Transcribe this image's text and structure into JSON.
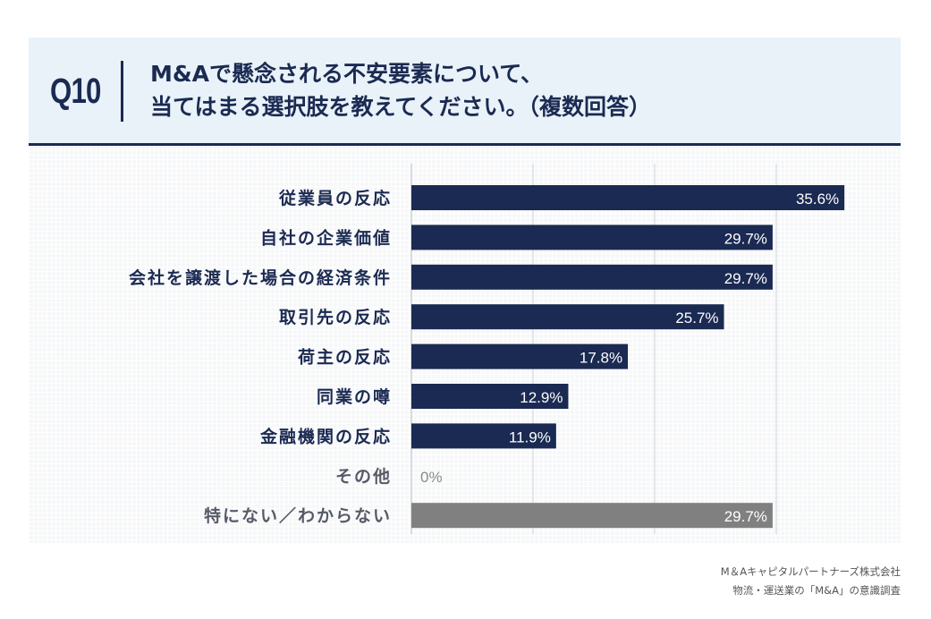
{
  "header": {
    "question_number": "Q10",
    "title_line1": "M&Aで懸念される不安要素について、",
    "title_line2": "当てはまる選択肢を教えてください。（複数回答）"
  },
  "chart_data": {
    "type": "bar",
    "orientation": "horizontal",
    "categories": [
      "従業員の反応",
      "自社の企業価値",
      "会社を譲渡した場合の経済条件",
      "取引先の反応",
      "荷主の反応",
      "同業の噂",
      "金融機関の反応",
      "その他",
      "特にない／わからない"
    ],
    "values": [
      35.6,
      29.7,
      29.7,
      25.7,
      17.8,
      12.9,
      11.9,
      0,
      29.7
    ],
    "value_labels": [
      "35.6%",
      "29.7%",
      "29.7%",
      "25.7%",
      "17.8%",
      "12.9%",
      "11.9%",
      "0%",
      "29.7%"
    ],
    "xlim": [
      0,
      40
    ],
    "gridlines": [
      0,
      10,
      20,
      30
    ],
    "colors": {
      "main": "#1b2a52",
      "muted": "#808080",
      "muted_label": "#8a8a8a",
      "label": "#1b2a52"
    }
  },
  "footer": {
    "company": "M＆Aキャピタルパートナーズ株式会社",
    "survey": "物流・運送業の「M&A」の意識調査"
  }
}
